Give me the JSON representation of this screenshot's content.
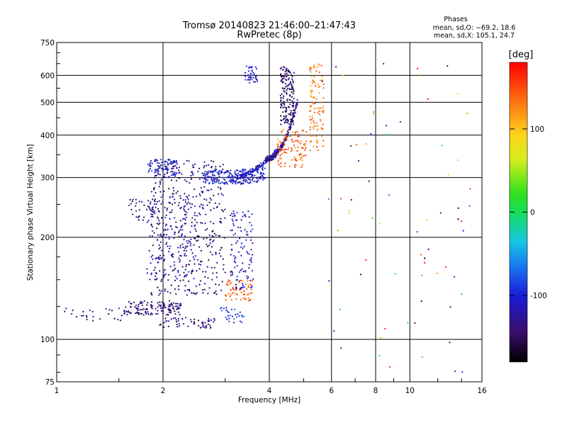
{
  "chart_data": {
    "type": "scatter",
    "title": "Tromsø 20140823 21:46:00–21:47:43",
    "subtitle": "RwPretec (8p)",
    "phases": {
      "heading": "Phases",
      "line_o": "mean, sd,O: −69.2, 18.6",
      "line_x": "mean, sd,X: 105.1, 24.7"
    },
    "xlabel": "Frequency [MHz]",
    "ylabel": "Stationary phase Virtual Height [km]",
    "x_scale": "log",
    "y_scale": "log",
    "xlim": [
      1,
      16
    ],
    "ylim": [
      75,
      750
    ],
    "x_ticks": [
      1,
      2,
      4,
      6,
      8,
      10,
      16
    ],
    "x_tick_labels": [
      "1",
      "2",
      "4",
      "6",
      "8",
      "10",
      "16"
    ],
    "y_ticks": [
      75,
      100,
      200,
      300,
      400,
      500,
      600,
      750
    ],
    "y_tick_labels": [
      "75",
      "100",
      "200",
      "300",
      "400",
      "500",
      "600",
      "750"
    ],
    "grid": true,
    "colorbar": {
      "label": "[deg]",
      "range": [
        -180,
        180
      ],
      "ticks": [
        100,
        0,
        -100
      ],
      "tick_labels": [
        "100",
        "0",
        "-100"
      ]
    },
    "clusters": [
      {
        "name": "low-layer-cyan",
        "f": [
          1.55,
          2.25
        ],
        "h": [
          118,
          130
        ],
        "c": -140,
        "n": 140,
        "shape": "band"
      },
      {
        "name": "low-layer-tail",
        "f": [
          1.05,
          1.55
        ],
        "h": [
          112,
          124
        ],
        "c": -140,
        "n": 25,
        "shape": "band"
      },
      {
        "name": "e-curve-base",
        "f": [
          1.95,
          2.8
        ],
        "h": [
          108,
          116
        ],
        "c": -140,
        "n": 60,
        "shape": "band"
      },
      {
        "name": "mid-columns",
        "f": [
          1.85,
          3.0
        ],
        "h": [
          135,
          340
        ],
        "c": -135,
        "n": 420,
        "shape": "cloud"
      },
      {
        "name": "mid-columns-dark",
        "f": [
          1.8,
          2.5
        ],
        "h": [
          150,
          260
        ],
        "c": -110,
        "n": 120,
        "shape": "cloud"
      },
      {
        "name": "left-patch",
        "f": [
          1.6,
          1.95
        ],
        "h": [
          220,
          260
        ],
        "c": -140,
        "n": 40,
        "shape": "cloud"
      },
      {
        "name": "dark-cluster-300",
        "f": [
          1.8,
          2.2
        ],
        "h": [
          300,
          340
        ],
        "c": -105,
        "n": 90,
        "shape": "cloud"
      },
      {
        "name": "f-trace-lower",
        "f": [
          2.6,
          3.9
        ],
        "h": [
          285,
          315
        ],
        "c": -105,
        "n": 220,
        "shape": "curveA"
      },
      {
        "name": "f-trace-rise",
        "f": [
          3.2,
          4.4
        ],
        "h": [
          300,
          380
        ],
        "c": -110,
        "n": 160,
        "shape": "curveB"
      },
      {
        "name": "f-trace-upper",
        "f": [
          3.9,
          4.8
        ],
        "h": [
          340,
          500
        ],
        "c": -130,
        "n": 160,
        "shape": "curveC"
      },
      {
        "name": "vertical-4.5",
        "f": [
          4.3,
          4.7
        ],
        "h": [
          430,
          640
        ],
        "c": -145,
        "n": 160,
        "shape": "cloud"
      },
      {
        "name": "orange-x-lower",
        "f": [
          3.0,
          3.6
        ],
        "h": [
          130,
          150
        ],
        "c": 140,
        "n": 60,
        "shape": "band"
      },
      {
        "name": "orange-x-mid",
        "f": [
          4.2,
          5.1
        ],
        "h": [
          320,
          420
        ],
        "c": 140,
        "n": 110,
        "shape": "cloud"
      },
      {
        "name": "orange-x-upper",
        "f": [
          5.2,
          5.7
        ],
        "h": [
          360,
          650
        ],
        "c": 130,
        "n": 110,
        "shape": "cloud"
      },
      {
        "name": "top-cluster",
        "f": [
          3.4,
          3.7
        ],
        "h": [
          570,
          640
        ],
        "c": -110,
        "n": 40,
        "shape": "cloud"
      },
      {
        "name": "mid-right-blue",
        "f": [
          3.1,
          3.6
        ],
        "h": [
          140,
          240
        ],
        "c": -110,
        "n": 110,
        "shape": "cloud"
      },
      {
        "name": "scattered-noise",
        "f": [
          5.5,
          15
        ],
        "h": [
          78,
          700
        ],
        "c": 0,
        "n": 70,
        "shape": "noise"
      },
      {
        "name": "low-dark",
        "f": [
          2.9,
          3.4
        ],
        "h": [
          112,
          125
        ],
        "c": -90,
        "n": 30,
        "shape": "cloud"
      }
    ]
  }
}
